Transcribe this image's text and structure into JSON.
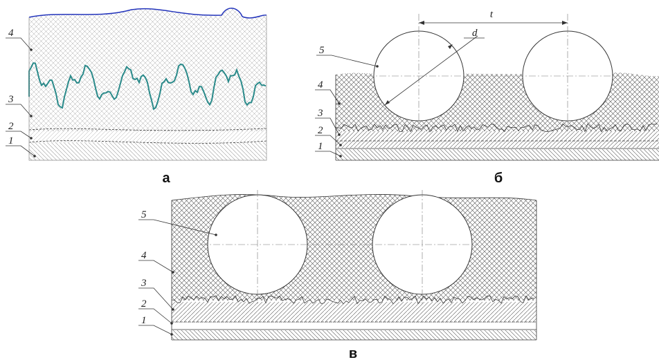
{
  "panels": {
    "a": {
      "caption": "а",
      "labels": [
        "1",
        "2",
        "3",
        "4"
      ]
    },
    "b": {
      "caption": "б",
      "labels": [
        "1",
        "2",
        "3",
        "4",
        "5"
      ],
      "pitch": "t",
      "diameter": "d"
    },
    "c": {
      "caption": "в",
      "labels": [
        "1",
        "2",
        "3",
        "4",
        "5"
      ]
    }
  }
}
